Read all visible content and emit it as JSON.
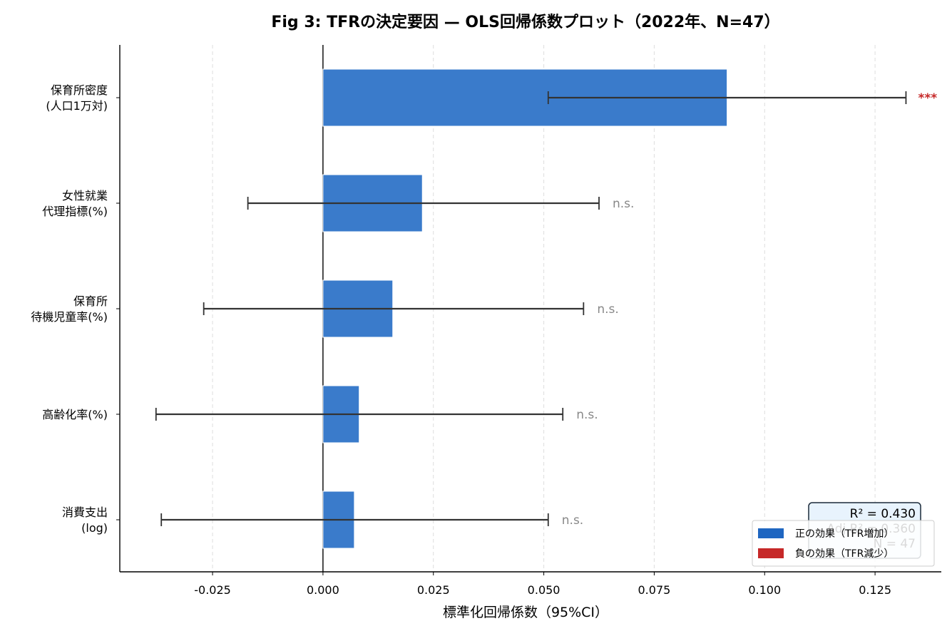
{
  "chart_data": {
    "type": "bar",
    "orientation": "horizontal",
    "title": "Fig 3: TFRの決定要因 — OLS回帰係数プロット（2022年、N=47）",
    "xlabel": "標準化回帰係数（95%CI）",
    "xlim": [
      -0.046,
      0.14
    ],
    "xticks": [
      -0.025,
      0.0,
      0.025,
      0.05,
      0.075,
      0.1,
      0.125
    ],
    "xtick_labels": [
      "-0.025",
      "0.000",
      "0.025",
      "0.050",
      "0.075",
      "0.100",
      "0.125"
    ],
    "grid": "x-dashed",
    "zero_line": 0.0,
    "categories": [
      {
        "label_lines": [
          "保育所密度",
          "(人口1万対)"
        ],
        "coef": 0.0915,
        "ci": [
          0.051,
          0.132
        ],
        "sig": "***",
        "effect": "positive"
      },
      {
        "label_lines": [
          "女性就業",
          "代理指標(%)"
        ],
        "coef": 0.0225,
        "ci": [
          -0.017,
          0.0625
        ],
        "sig": "n.s.",
        "effect": "positive"
      },
      {
        "label_lines": [
          "保育所",
          "待機児童率(%)"
        ],
        "coef": 0.0158,
        "ci": [
          -0.027,
          0.059
        ],
        "sig": "n.s.",
        "effect": "positive"
      },
      {
        "label_lines": [
          "高齢化率(%)"
        ],
        "coef": 0.0082,
        "ci": [
          -0.0378,
          0.0543
        ],
        "sig": "n.s.",
        "effect": "positive"
      },
      {
        "label_lines": [
          "消費支出",
          "(log)"
        ],
        "coef": 0.0071,
        "ci": [
          -0.0366,
          0.051
        ],
        "sig": "n.s.",
        "effect": "positive"
      }
    ],
    "legend": {
      "placement": "lower-right",
      "entries": [
        {
          "label": "正の効果（TFR増加）",
          "color": "#1f66c1"
        },
        {
          "label": "負の効果（TFR減少）",
          "color": "#c62828"
        }
      ]
    },
    "stats_box": {
      "lines": [
        "R² = 0.430",
        "Adj R² = 0.360",
        "N = 47"
      ]
    },
    "colors": {
      "positive": "#3a7bcb",
      "negative": "#c62828",
      "sig_star": "#c62828",
      "sig_ns": "#888888",
      "errorbar": "#333333",
      "grid": "#dddddd",
      "stats_bg": "#e8f3fd"
    }
  }
}
